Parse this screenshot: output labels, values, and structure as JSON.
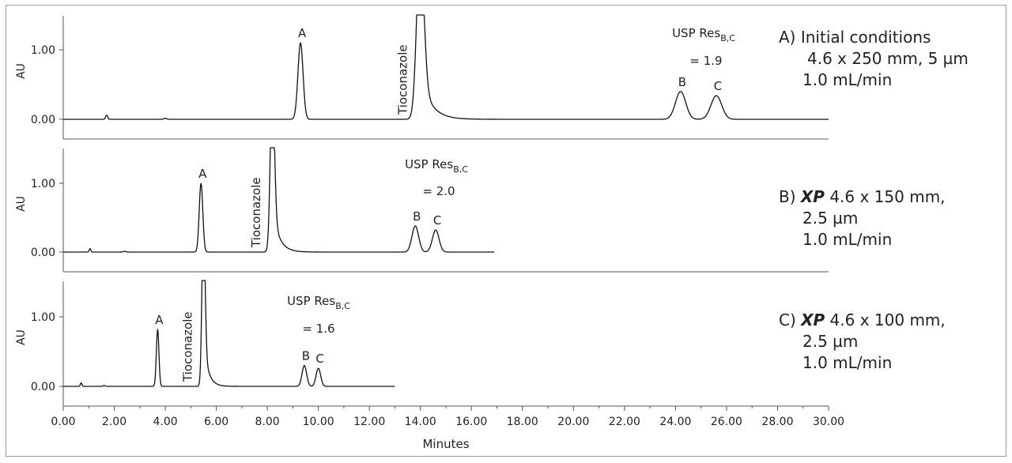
{
  "chart_data": {
    "type": "line",
    "xlabel": "Minutes",
    "ylabel": "AU",
    "xlim": [
      0,
      30
    ],
    "x_ticks": [
      "0.00",
      "2.00",
      "4.00",
      "6.00",
      "8.00",
      "10.00",
      "12.00",
      "14.00",
      "16.00",
      "18.00",
      "20.00",
      "22.00",
      "24.00",
      "26.00",
      "28.00",
      "30.00"
    ],
    "panels": [
      {
        "id": "A",
        "ylabel": "AU",
        "ylim": [
          -0.1,
          1.5
        ],
        "y_ticks": [
          "0.00",
          "1.00"
        ],
        "x_end": 30,
        "caption": [
          "A) Initial conditions",
          "4.6 x 250 mm, 5 µm",
          "1.0 mL/min"
        ],
        "resolution": {
          "label": "USP Res",
          "subscript": "B,C",
          "value": "= 1.9"
        },
        "peaks": [
          {
            "label": "",
            "rt": 1.7,
            "height": 0.06,
            "width": 0.04
          },
          {
            "label": "",
            "rt": 4.0,
            "height": 0.015,
            "width": 0.05
          },
          {
            "label": "A",
            "rt": 9.3,
            "height": 1.1,
            "width": 0.1
          },
          {
            "label": "Tioconazole",
            "rt": 14.0,
            "height": 2.6,
            "width": 0.14,
            "tail": 0.4
          },
          {
            "label": "B",
            "rt": 24.2,
            "height": 0.4,
            "width": 0.2
          },
          {
            "label": "C",
            "rt": 25.6,
            "height": 0.34,
            "width": 0.21
          }
        ]
      },
      {
        "id": "B",
        "ylabel": "AU",
        "ylim": [
          -0.1,
          1.5
        ],
        "y_ticks": [
          "0.00",
          "1.00"
        ],
        "x_end": 16.9,
        "caption": [
          "B) XP 4.6 x 150 mm,",
          "2.5 µm",
          "1.0 mL/min"
        ],
        "resolution": {
          "label": "USP Res",
          "subscript": "B,C",
          "value": "= 2.0"
        },
        "peaks": [
          {
            "label": "",
            "rt": 1.05,
            "height": 0.05,
            "width": 0.03
          },
          {
            "label": "",
            "rt": 2.4,
            "height": 0.012,
            "width": 0.05
          },
          {
            "label": "A",
            "rt": 5.4,
            "height": 1.0,
            "width": 0.07
          },
          {
            "label": "Tioconazole",
            "rt": 8.2,
            "height": 2.6,
            "width": 0.08,
            "tail": 0.25
          },
          {
            "label": "B",
            "rt": 13.8,
            "height": 0.38,
            "width": 0.13
          },
          {
            "label": "C",
            "rt": 14.6,
            "height": 0.32,
            "width": 0.13
          }
        ]
      },
      {
        "id": "C",
        "ylabel": "AU",
        "ylim": [
          -0.1,
          1.5
        ],
        "y_ticks": [
          "0.00",
          "1.00"
        ],
        "x_end": 13.0,
        "caption": [
          "C) XP 4.6 x 100 mm,",
          "2.5 µm",
          "1.0 mL/min"
        ],
        "resolution": {
          "label": "USP Res",
          "subscript": "B,C",
          "value": "= 1.6"
        },
        "peaks": [
          {
            "label": "",
            "rt": 0.7,
            "height": 0.05,
            "width": 0.03
          },
          {
            "label": "",
            "rt": 1.6,
            "height": 0.012,
            "width": 0.04
          },
          {
            "label": "A",
            "rt": 3.7,
            "height": 0.82,
            "width": 0.05
          },
          {
            "label": "Tioconazole",
            "rt": 5.5,
            "height": 2.6,
            "width": 0.06,
            "tail": 0.18
          },
          {
            "label": "B",
            "rt": 9.45,
            "height": 0.3,
            "width": 0.09
          },
          {
            "label": "C",
            "rt": 10.0,
            "height": 0.26,
            "width": 0.09
          }
        ]
      }
    ]
  }
}
